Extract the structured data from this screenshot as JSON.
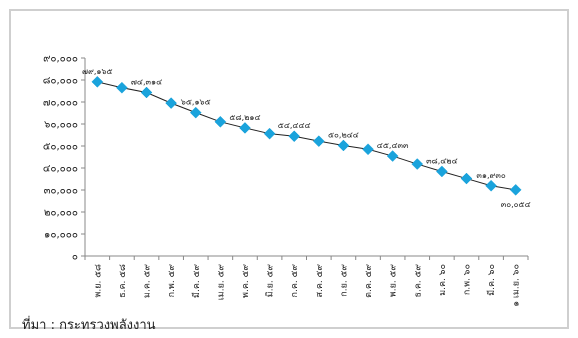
{
  "source": "ที่มา : กระทรวงพลังงาน",
  "chart_data": {
    "type": "line",
    "title": "",
    "xlabel": "",
    "ylabel": "",
    "ylim": [
      0,
      90000
    ],
    "yticks": [
      "๐",
      "๑๐,๐๐๐",
      "๒๐,๐๐๐",
      "๓๐,๐๐๐",
      "๔๐,๐๐๐",
      "๕๐,๐๐๐",
      "๖๐,๐๐๐",
      "๗๐,๐๐๐",
      "๘๐,๐๐๐",
      "๙๐,๐๐๐"
    ],
    "categories": [
      "พ.ย. ๕๘",
      "ธ.ค. ๕๘",
      "ม.ค. ๕๙",
      "ก.พ. ๕๙",
      "มี.ค. ๕๙",
      "เม.ย. ๕๙",
      "พ.ค. ๕๙",
      "มิ.ย. ๕๙",
      "ก.ค. ๕๙",
      "ส.ค. ๕๙",
      "ก.ย. ๕๙",
      "ต.ค. ๕๙",
      "พ.ย. ๕๙",
      "ธ.ค. ๕๙",
      "ม.ค. ๖๐",
      "ก.พ. ๖๐",
      "มี.ค. ๖๐",
      "๑ เม.ย. ๖๐"
    ],
    "values": [
      79165,
      76500,
      74314,
      69500,
      65165,
      61000,
      58214,
      55600,
      54444,
      52200,
      50244,
      48500,
      45433,
      41800,
      38424,
      35200,
      31930,
      30054
    ],
    "data_labels": [
      {
        "index": 0,
        "text": "๗๙,๑๖๕"
      },
      {
        "index": 2,
        "text": "๗๔,๓๑๔"
      },
      {
        "index": 4,
        "text": "๖๕,๑๖๕"
      },
      {
        "index": 6,
        "text": "๕๘,๒๑๔"
      },
      {
        "index": 8,
        "text": "๕๔,๔๔๔"
      },
      {
        "index": 10,
        "text": "๕๐,๒๔๔"
      },
      {
        "index": 12,
        "text": "๔๕,๔๓๓"
      },
      {
        "index": 14,
        "text": "๓๘,๔๒๔"
      },
      {
        "index": 16,
        "text": "๓๑,๙๓๐"
      },
      {
        "index": 17,
        "text": "๓๐,๐๕๔"
      }
    ],
    "series_color": "#1aa3dc",
    "line_color": "#222222",
    "grid": false,
    "legend": "none"
  }
}
